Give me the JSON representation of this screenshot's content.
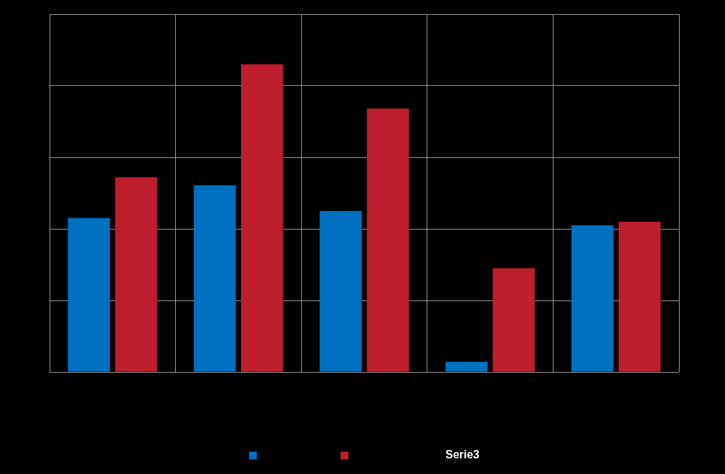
{
  "chart_data": {
    "type": "bar",
    "categories": [
      null,
      null,
      null,
      null,
      null
    ],
    "series": [
      {
        "name": null,
        "color": "#0070c0",
        "values": [
          2.15,
          2.61,
          2.25,
          0.14,
          2.05
        ]
      },
      {
        "name": null,
        "color": "#be1e2d",
        "values": [
          2.72,
          4.3,
          3.68,
          1.45,
          2.1
        ]
      },
      {
        "name": "Serie3",
        "color": "#000000",
        "values": [
          null,
          null,
          null,
          null,
          null
        ]
      }
    ],
    "ylim": [
      0,
      5
    ],
    "yticks": [
      0,
      1,
      2,
      3,
      4,
      5
    ],
    "grid": true,
    "legend": "bottom",
    "tick_labels": false
  }
}
